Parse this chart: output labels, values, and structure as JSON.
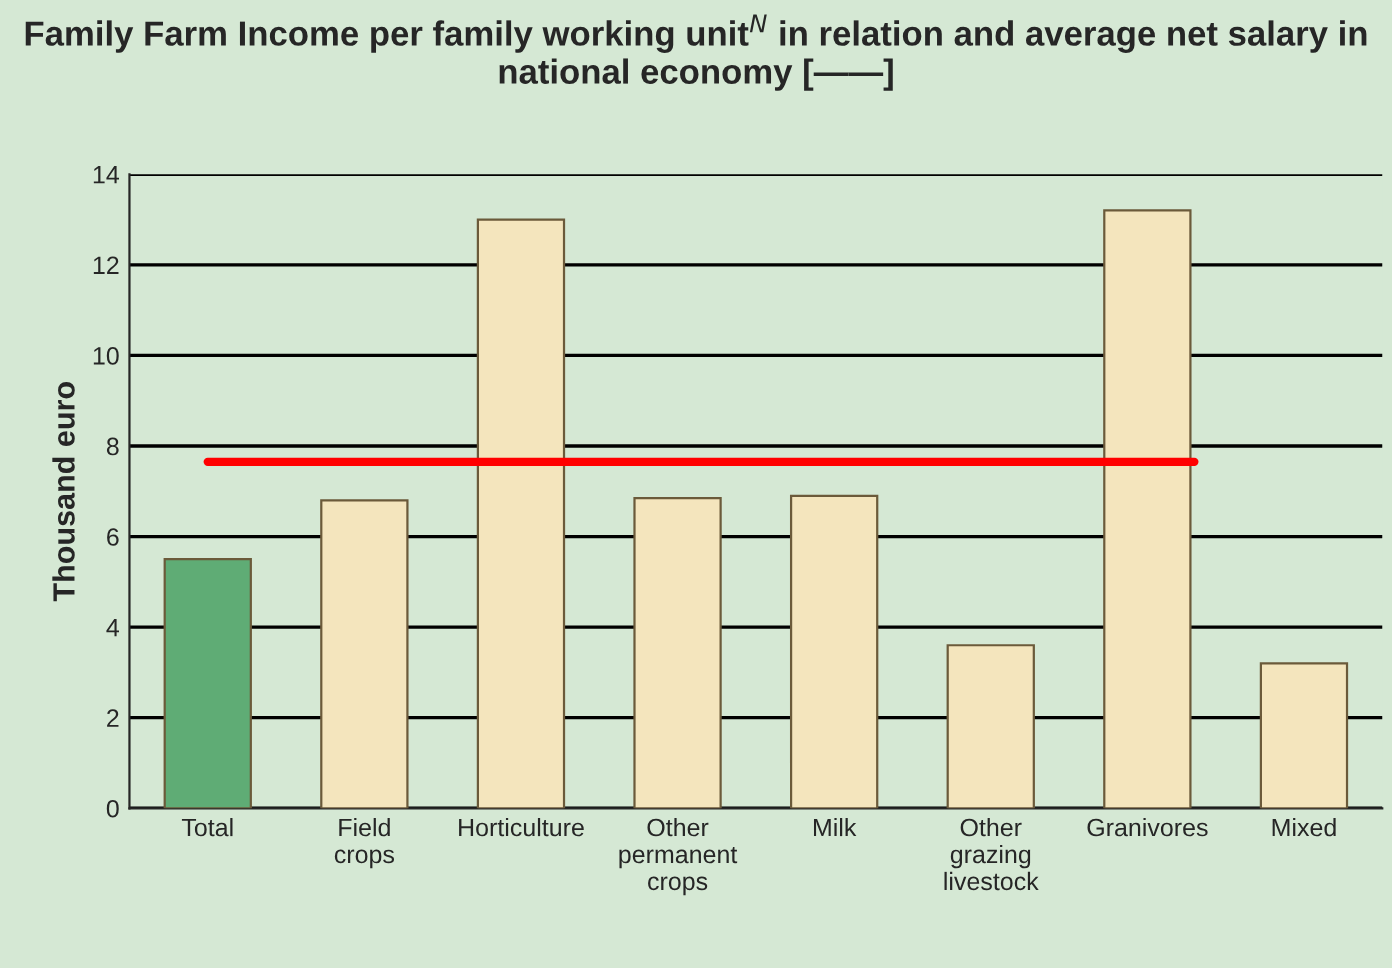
{
  "chart_data": {
    "type": "bar",
    "title": "Family Farm Income per family working unit$^{N}$ in relation and average net salary in national economy [——]",
    "ylabel": "Thousand euro",
    "categories": [
      "Total",
      "Field\ncrops",
      "Horticulture",
      "Other\npermanent\ncrops",
      "Milk",
      "Other\ngrazing\nlivestock",
      "Granivores",
      "Mixed"
    ],
    "values": [
      5.5,
      6.8,
      13.0,
      6.85,
      6.9,
      3.6,
      13.2,
      3.2
    ],
    "colors": [
      "#52b96f",
      "#fde9b4",
      "#fde9b4",
      "#fde9b4",
      "#fde9b4",
      "#fde9b4",
      "#fde9b4",
      "#fde9b4"
    ],
    "ylim": [
      0,
      14
    ],
    "yticks": [
      0,
      2,
      4,
      6,
      8,
      10,
      12,
      14
    ],
    "ref_lines": [
      {
        "axis": "y",
        "value": 7.65,
        "label": null,
        "color": "#ff0000"
      }
    ],
    "grid": "y",
    "legend": false
  }
}
